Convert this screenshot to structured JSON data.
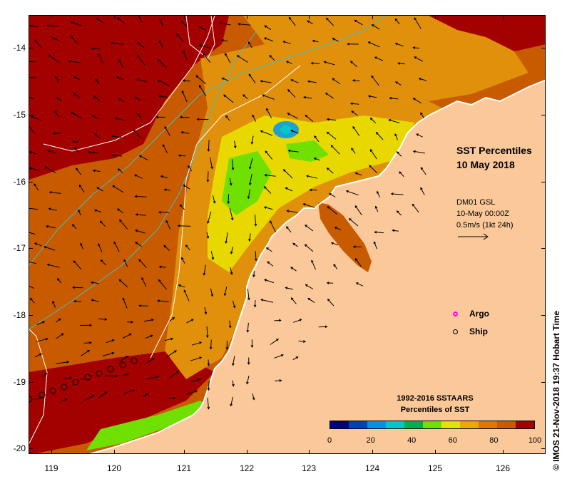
{
  "title_line1": "SST Percentiles",
  "title_line2": "10 May 2018",
  "vectors": {
    "line1": "DM01 GSL",
    "line2": "10-May 00:00Z",
    "line3": "0.5m/s (1kt 24h)"
  },
  "legend": {
    "argo": "Argo",
    "argo_color": "#ff00ff",
    "ship": "Ship"
  },
  "colorbar": {
    "title_line1": "1992-2016 SSTAARS",
    "title_line2": "Percentiles of SST",
    "ticks": [
      "0",
      "20",
      "40",
      "60",
      "80",
      "100"
    ],
    "colors": [
      "#00007f",
      "#0040c0",
      "#0090f0",
      "#00c8c8",
      "#00b050",
      "#70e000",
      "#e8e000",
      "#f0a800",
      "#e07800",
      "#c85a00",
      "#a00000"
    ]
  },
  "axes": {
    "lat_labels": [
      "-14",
      "-15",
      "-16",
      "-17",
      "-18",
      "-19",
      "-20"
    ],
    "lon_labels": [
      "119",
      "120",
      "121",
      "122",
      "123",
      "124",
      "125",
      "126"
    ]
  },
  "credit": "© IMOS 21-Nov-2018 19:37 Hobart Time",
  "colors": {
    "land": "#fbc89a",
    "dark_red": "#a30000",
    "orange": "#c85a00",
    "light_orange": "#e0900a",
    "yellow": "#e8d800",
    "green": "#70e000",
    "cyan": "#20a0d0"
  }
}
